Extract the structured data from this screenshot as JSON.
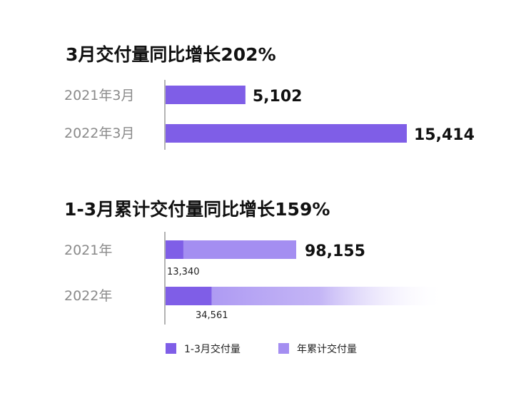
{
  "colors": {
    "bar_primary": "#7f5ee7",
    "bar_secondary": "#a48ef1",
    "axis": "#9a9a9a"
  },
  "chart_data": [
    {
      "type": "bar",
      "title": "3月交付量同比增长202%",
      "categories": [
        "2021年3月",
        "2022年3月"
      ],
      "values": [
        5102,
        15414
      ],
      "value_labels": [
        "5,102",
        "15,414"
      ],
      "orientation": "horizontal",
      "xlim": [
        0,
        15414
      ]
    },
    {
      "type": "bar",
      "title": "1-3月累计交付量同比增长159%",
      "categories": [
        "2021年",
        "2022年"
      ],
      "orientation": "horizontal",
      "stacked_overlay": true,
      "series": [
        {
          "name": "1-3月交付量",
          "values": [
            13340,
            34561
          ],
          "labels": [
            "13,340",
            "34,561"
          ]
        },
        {
          "name": "年累计交付量",
          "values": [
            98155,
            null
          ],
          "labels": [
            "98,155",
            ""
          ]
        }
      ],
      "legend_position": "bottom"
    }
  ]
}
